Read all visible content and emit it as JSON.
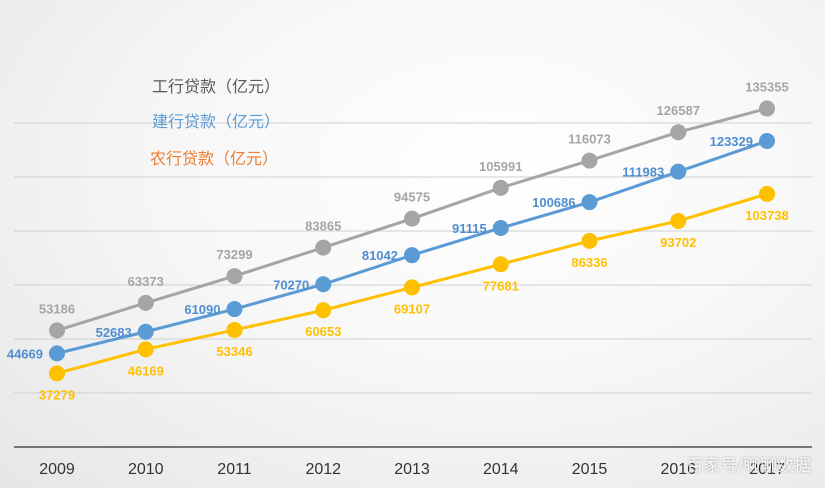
{
  "chart_data": {
    "type": "line",
    "title": "",
    "xlabel": "",
    "ylabel": "",
    "categories": [
      "2009",
      "2010",
      "2011",
      "2012",
      "2013",
      "2014",
      "2015",
      "2016",
      "2017"
    ],
    "ylim": [
      10000,
      140000
    ],
    "grid": "horizontal",
    "legend_position": "top-left",
    "series": [
      {
        "name": "工行贷款（亿元）",
        "color": "#a5a5a5",
        "values": [
          53186,
          63373,
          73299,
          83865,
          94575,
          105991,
          116073,
          126587,
          135355
        ]
      },
      {
        "name": "建行贷款（亿元）",
        "color": "#5b9bd5",
        "values": [
          44669,
          52683,
          61090,
          70270,
          81042,
          91115,
          100686,
          111983,
          123329
        ]
      },
      {
        "name": "农行贷款（亿元）",
        "color": "#ffc000",
        "values": [
          37279,
          46169,
          53346,
          60653,
          69107,
          77681,
          86336,
          93702,
          103738
        ]
      }
    ]
  },
  "legend_text_colors": [
    "#595959",
    "#5b9bd5",
    "#ed7d31"
  ],
  "watermark": "百家号/聊聊数据"
}
